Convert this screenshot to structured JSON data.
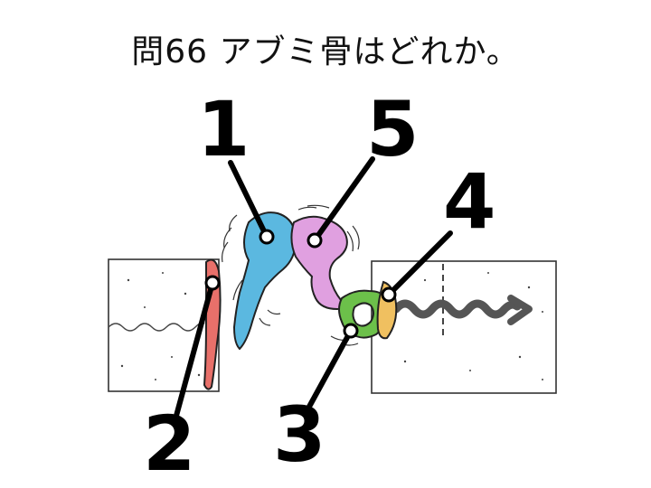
{
  "question": {
    "title": "問66 アブミ骨はどれか。"
  },
  "labels": [
    "1",
    "2",
    "3",
    "4",
    "5"
  ],
  "colors": {
    "part1": "#5bb8e0",
    "part2": "#e8706a",
    "part3": "#6cc04a",
    "part4": "#f0c060",
    "part5": "#e0a0e0",
    "outline": "#222222"
  }
}
